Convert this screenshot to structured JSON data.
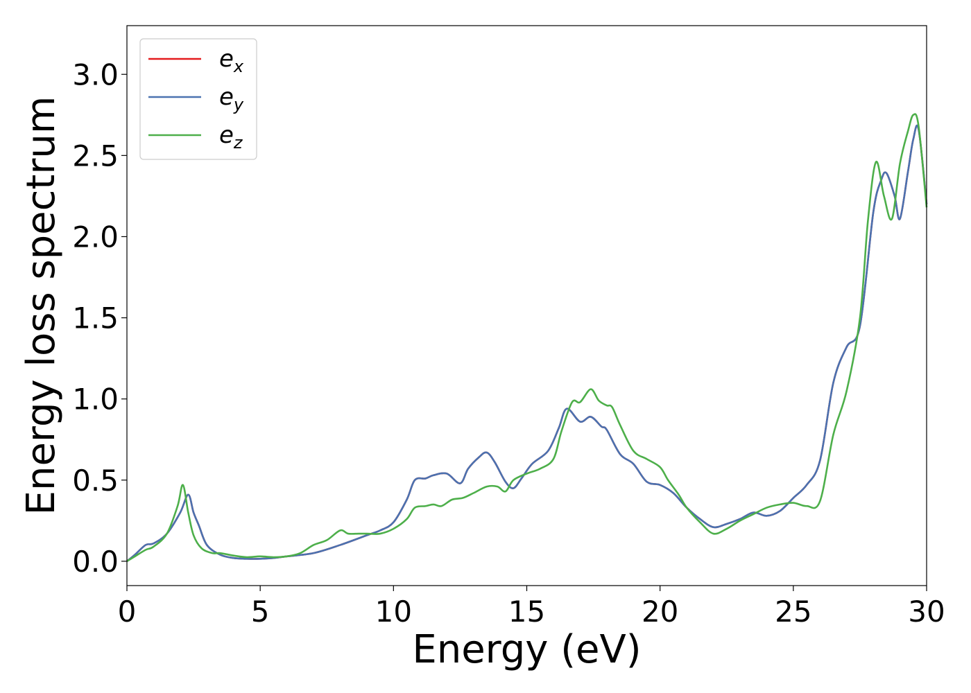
{
  "chart_data": {
    "type": "line",
    "xlabel": "Energy (eV)",
    "ylabel": "Energy loss spectrum",
    "xlim": [
      0,
      30
    ],
    "ylim": [
      -0.15,
      3.3
    ],
    "xticks": [
      0,
      5,
      10,
      15,
      20,
      25,
      30
    ],
    "xtick_labels": [
      "0",
      "5",
      "10",
      "15",
      "20",
      "25",
      "30"
    ],
    "yticks": [
      0.0,
      0.5,
      1.0,
      1.5,
      2.0,
      2.5,
      3.0
    ],
    "ytick_labels": [
      "0.0",
      "0.5",
      "1.0",
      "1.5",
      "2.0",
      "2.5",
      "3.0"
    ],
    "grid": false,
    "legend_position": "top-left",
    "series": [
      {
        "name": "e_x",
        "legend_base": "e",
        "legend_sub": "x",
        "color": "#e41a1c",
        "x": [
          0,
          0.3,
          0.7,
          1.0,
          1.5,
          2.0,
          2.3,
          2.5,
          2.7,
          3.0,
          3.5,
          4.0,
          4.5,
          5.0,
          5.5,
          6.0,
          7.0,
          8.0,
          9.0,
          9.5,
          10.0,
          10.5,
          10.8,
          11.2,
          11.5,
          12.0,
          12.5,
          12.8,
          13.2,
          13.5,
          13.8,
          14.2,
          14.5,
          14.8,
          15.2,
          15.8,
          16.2,
          16.5,
          17.0,
          17.4,
          17.8,
          18.0,
          18.5,
          19.0,
          19.5,
          20.0,
          20.5,
          21.0,
          21.5,
          22.0,
          22.5,
          23.0,
          23.5,
          24.0,
          24.5,
          25.0,
          25.5,
          26.0,
          26.5,
          27.0,
          27.5,
          28.0,
          28.3,
          28.5,
          28.8,
          29.0,
          29.3,
          29.5,
          29.7,
          30.0
        ],
        "values": [
          0.0,
          0.04,
          0.1,
          0.11,
          0.17,
          0.3,
          0.41,
          0.3,
          0.22,
          0.1,
          0.04,
          0.02,
          0.015,
          0.015,
          0.02,
          0.03,
          0.05,
          0.1,
          0.16,
          0.19,
          0.24,
          0.38,
          0.5,
          0.51,
          0.53,
          0.54,
          0.48,
          0.57,
          0.64,
          0.67,
          0.61,
          0.49,
          0.45,
          0.51,
          0.6,
          0.68,
          0.82,
          0.94,
          0.86,
          0.89,
          0.83,
          0.81,
          0.66,
          0.6,
          0.49,
          0.47,
          0.42,
          0.33,
          0.26,
          0.21,
          0.23,
          0.26,
          0.3,
          0.28,
          0.31,
          0.39,
          0.47,
          0.62,
          1.1,
          1.32,
          1.45,
          2.15,
          2.35,
          2.39,
          2.25,
          2.11,
          2.4,
          2.6,
          2.66,
          2.2
        ]
      },
      {
        "name": "e_y",
        "legend_base": "e",
        "legend_sub": "y",
        "color": "#4a72b0",
        "x": [
          0,
          0.3,
          0.7,
          1.0,
          1.5,
          2.0,
          2.3,
          2.5,
          2.7,
          3.0,
          3.5,
          4.0,
          4.5,
          5.0,
          5.5,
          6.0,
          7.0,
          8.0,
          9.0,
          9.5,
          10.0,
          10.5,
          10.8,
          11.2,
          11.5,
          12.0,
          12.5,
          12.8,
          13.2,
          13.5,
          13.8,
          14.2,
          14.5,
          14.8,
          15.2,
          15.8,
          16.2,
          16.5,
          17.0,
          17.4,
          17.8,
          18.0,
          18.5,
          19.0,
          19.5,
          20.0,
          20.5,
          21.0,
          21.5,
          22.0,
          22.5,
          23.0,
          23.5,
          24.0,
          24.5,
          25.0,
          25.5,
          26.0,
          26.5,
          27.0,
          27.5,
          28.0,
          28.3,
          28.5,
          28.8,
          29.0,
          29.3,
          29.5,
          29.7,
          30.0
        ],
        "values": [
          0.0,
          0.04,
          0.1,
          0.11,
          0.17,
          0.3,
          0.41,
          0.3,
          0.22,
          0.1,
          0.04,
          0.02,
          0.015,
          0.015,
          0.02,
          0.03,
          0.05,
          0.1,
          0.16,
          0.19,
          0.24,
          0.38,
          0.5,
          0.51,
          0.53,
          0.54,
          0.48,
          0.57,
          0.64,
          0.67,
          0.61,
          0.49,
          0.45,
          0.51,
          0.6,
          0.68,
          0.82,
          0.94,
          0.86,
          0.89,
          0.83,
          0.81,
          0.66,
          0.6,
          0.49,
          0.47,
          0.42,
          0.33,
          0.26,
          0.21,
          0.23,
          0.26,
          0.3,
          0.28,
          0.31,
          0.39,
          0.47,
          0.62,
          1.1,
          1.32,
          1.45,
          2.15,
          2.35,
          2.39,
          2.25,
          2.11,
          2.4,
          2.6,
          2.66,
          2.2
        ]
      },
      {
        "name": "e_z",
        "legend_base": "e",
        "legend_sub": "z",
        "color": "#4daf4a",
        "x": [
          0,
          0.3,
          0.7,
          1.0,
          1.5,
          1.9,
          2.1,
          2.3,
          2.5,
          2.8,
          3.2,
          3.5,
          4.0,
          4.5,
          5.0,
          5.5,
          6.0,
          6.5,
          7.0,
          7.5,
          8.0,
          8.3,
          8.7,
          9.0,
          9.5,
          10.0,
          10.5,
          10.8,
          11.2,
          11.5,
          11.8,
          12.2,
          12.6,
          13.0,
          13.5,
          13.9,
          14.2,
          14.5,
          15.0,
          15.5,
          16.0,
          16.3,
          16.7,
          17.0,
          17.4,
          17.7,
          18.0,
          18.2,
          18.5,
          19.0,
          19.5,
          20.0,
          20.3,
          20.7,
          21.0,
          21.5,
          22.0,
          22.5,
          23.0,
          23.5,
          24.0,
          24.5,
          25.0,
          25.5,
          26.0,
          26.5,
          27.0,
          27.5,
          27.8,
          28.1,
          28.4,
          28.7,
          29.0,
          29.3,
          29.5,
          29.7,
          30.0
        ],
        "values": [
          0.0,
          0.03,
          0.07,
          0.09,
          0.17,
          0.34,
          0.47,
          0.3,
          0.16,
          0.08,
          0.05,
          0.05,
          0.035,
          0.025,
          0.03,
          0.025,
          0.03,
          0.05,
          0.1,
          0.13,
          0.19,
          0.17,
          0.17,
          0.17,
          0.17,
          0.2,
          0.26,
          0.33,
          0.34,
          0.35,
          0.34,
          0.38,
          0.39,
          0.42,
          0.46,
          0.46,
          0.43,
          0.5,
          0.54,
          0.57,
          0.63,
          0.8,
          0.98,
          0.98,
          1.06,
          0.99,
          0.96,
          0.95,
          0.84,
          0.68,
          0.63,
          0.58,
          0.5,
          0.41,
          0.33,
          0.24,
          0.17,
          0.2,
          0.25,
          0.29,
          0.33,
          0.35,
          0.36,
          0.34,
          0.37,
          0.78,
          1.05,
          1.5,
          2.1,
          2.46,
          2.25,
          2.11,
          2.45,
          2.65,
          2.75,
          2.68,
          2.18
        ]
      }
    ]
  }
}
